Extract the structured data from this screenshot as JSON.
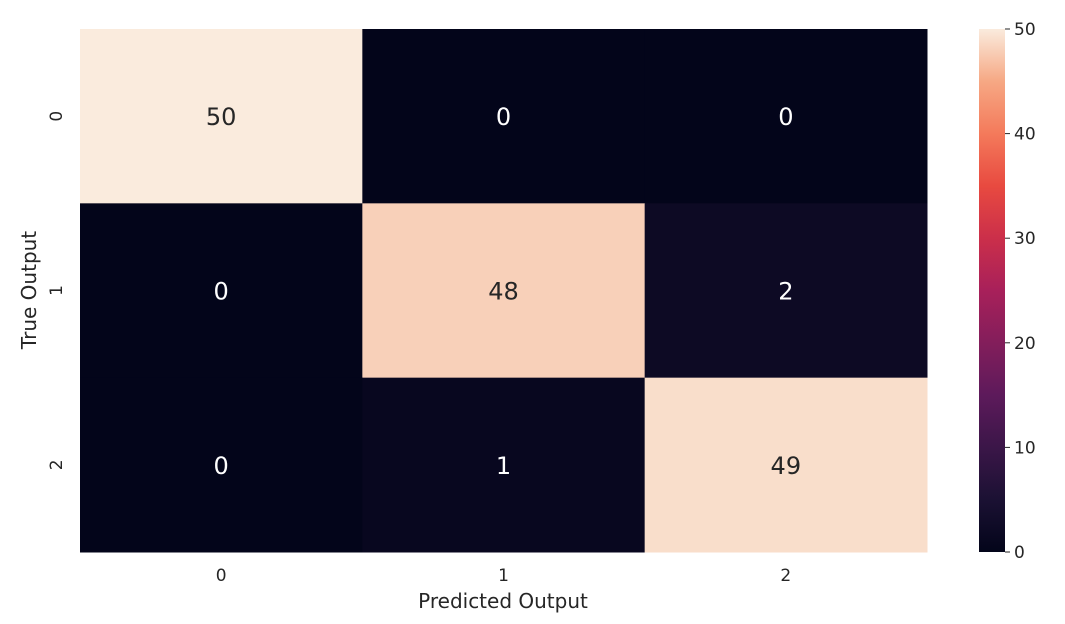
{
  "chart_data": {
    "type": "heatmap",
    "title": "",
    "xlabel": "Predicted Output",
    "ylabel": "True Output",
    "x_categories": [
      "0",
      "1",
      "2"
    ],
    "y_categories": [
      "0",
      "1",
      "2"
    ],
    "values": [
      [
        50,
        0,
        0
      ],
      [
        0,
        48,
        2
      ],
      [
        0,
        1,
        49
      ]
    ],
    "colorbar": {
      "min": 0,
      "max": 50,
      "ticks": [
        0,
        10,
        20,
        30,
        40,
        50
      ],
      "tick_labels": [
        "0",
        "10",
        "20",
        "30",
        "40",
        "50"
      ],
      "colormap": "rocket"
    },
    "annotations": true,
    "grid": false
  }
}
